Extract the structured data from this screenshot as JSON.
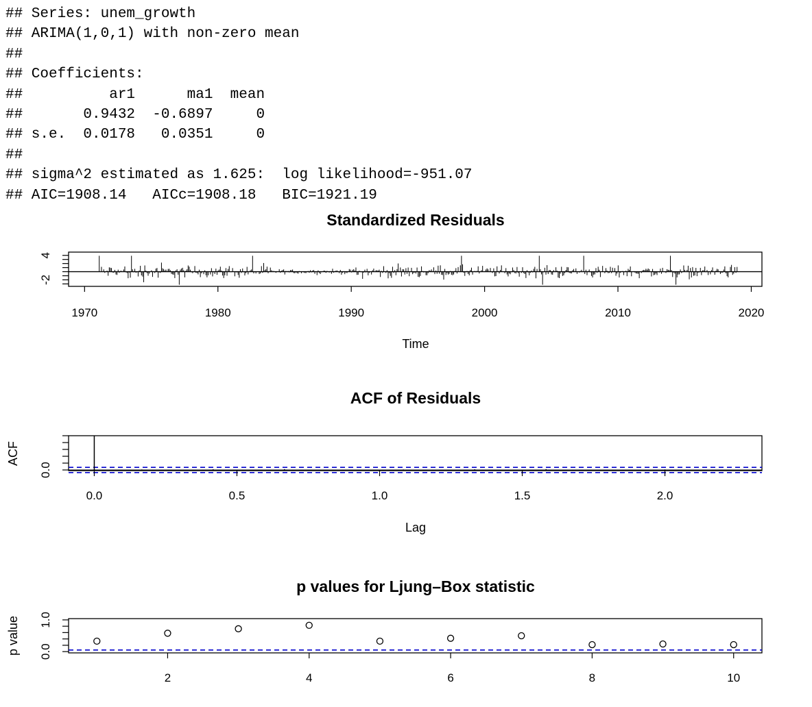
{
  "console": {
    "lines": [
      "## Series: unem_growth",
      "## ARIMA(1,0,1) with non-zero mean",
      "##",
      "## Coefficients:",
      "##          ar1      ma1  mean",
      "##       0.9432  -0.6897     0",
      "## s.e.  0.0178   0.0351     0",
      "##",
      "## sigma^2 estimated as 1.625:  log likelihood=-951.07",
      "## AIC=1908.14   AICc=1908.18   BIC=1921.19"
    ]
  },
  "chart_data": [
    {
      "type": "line",
      "title": "Standardized Residuals",
      "xlabel": "Time",
      "ylabel": "",
      "xlim": [
        1968.8,
        2020.8
      ],
      "ylim": [
        -3.6,
        4.8
      ],
      "x_ticks": [
        "1970",
        "1980",
        "1990",
        "2000",
        "2010",
        "2020"
      ],
      "y_ticks": [
        "-2",
        "4"
      ],
      "x_start": 1971.1,
      "x_end": 2018.9,
      "frequency": 12,
      "reference_line": 0,
      "grid": false
    },
    {
      "type": "bar",
      "title": "ACF of Residuals",
      "xlabel": "Lag",
      "ylabel": "ACF",
      "xlim": [
        -0.09,
        2.34
      ],
      "ylim": [
        -0.02,
        1.0
      ],
      "x_ticks": [
        "0.0",
        "0.5",
        "1.0",
        "1.5",
        "2.0"
      ],
      "y_ticks": [
        "0.0"
      ],
      "lag0_value": 1.0,
      "confidence_band": [
        -0.077,
        0.077
      ],
      "confidence_color": "#0000cc",
      "grid": false
    },
    {
      "type": "scatter",
      "title": "p values for Ljung–Box statistic",
      "xlabel": "",
      "ylabel": "p value",
      "xlim": [
        0.6,
        10.4
      ],
      "ylim": [
        -0.04,
        1.04
      ],
      "x_ticks": [
        "2",
        "4",
        "6",
        "8",
        "10"
      ],
      "y_ticks": [
        "0.0",
        "1.0"
      ],
      "x": [
        1,
        2,
        3,
        4,
        5,
        6,
        7,
        8,
        9,
        10
      ],
      "y": [
        0.33,
        0.58,
        0.72,
        0.83,
        0.33,
        0.42,
        0.5,
        0.22,
        0.24,
        0.22
      ],
      "significance_line": 0.05,
      "significance_color": "#0000cc",
      "grid": false
    }
  ]
}
